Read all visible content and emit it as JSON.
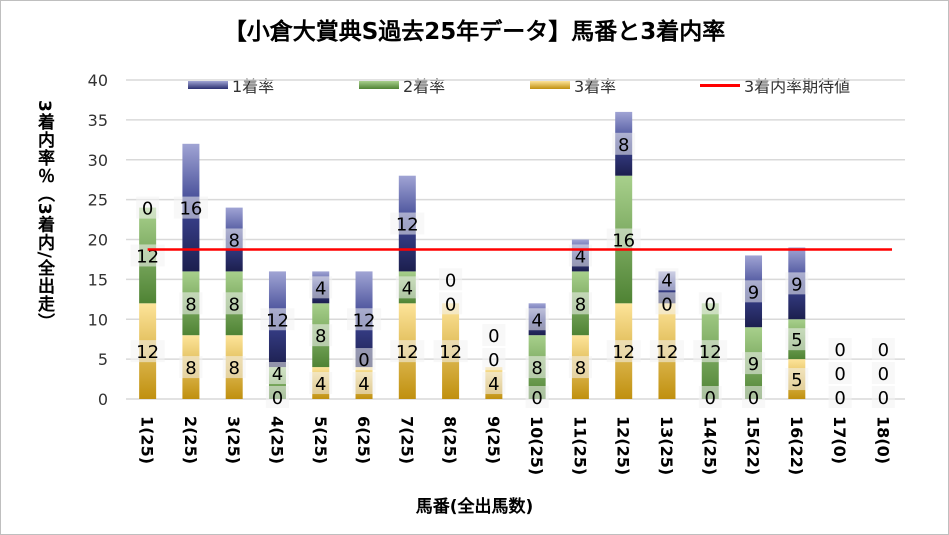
{
  "chart_data": {
    "type": "bar",
    "stacked": true,
    "title": "【小倉大賞典S過去25年データ】馬番と3着内率",
    "xlabel": "馬番(全出馬数)",
    "ylabel": "3着内率％（3着内/全出走）",
    "ylim": [
      0,
      40
    ],
    "yticks": [
      0,
      5,
      10,
      15,
      20,
      25,
      30,
      35,
      40
    ],
    "grid": true,
    "legend_position": "top",
    "categories": [
      "1(25)",
      "2(25)",
      "3(25)",
      "4(25)",
      "5(25)",
      "6(25)",
      "7(25)",
      "8(25)",
      "9(25)",
      "10(25)",
      "11(25)",
      "12(25)",
      "13(25)",
      "14(25)",
      "15(22)",
      "16(22)",
      "17(0)",
      "18(0)"
    ],
    "series": [
      {
        "name": "3着率",
        "color": "#d4a83a",
        "values": [
          12,
          8,
          8,
          0,
          4,
          4,
          12,
          12,
          4,
          0,
          8,
          12,
          12,
          0,
          0,
          5,
          0,
          0
        ]
      },
      {
        "name": "2着率",
        "color": "#70a050",
        "values": [
          12,
          8,
          8,
          4,
          8,
          0,
          4,
          0,
          0,
          8,
          8,
          16,
          0,
          12,
          9,
          5,
          0,
          0
        ]
      },
      {
        "name": "1着率",
        "color": "#5560a8",
        "values": [
          0,
          16,
          8,
          12,
          4,
          12,
          12,
          0,
          0,
          4,
          4,
          8,
          4,
          0,
          9,
          9,
          0,
          0
        ]
      }
    ],
    "reference_line": {
      "name": "3着内率期待値",
      "color": "#ff0000",
      "value": 18.75
    },
    "legend": [
      "1着率",
      "2着率",
      "3着率",
      "3着内率期待値"
    ]
  }
}
